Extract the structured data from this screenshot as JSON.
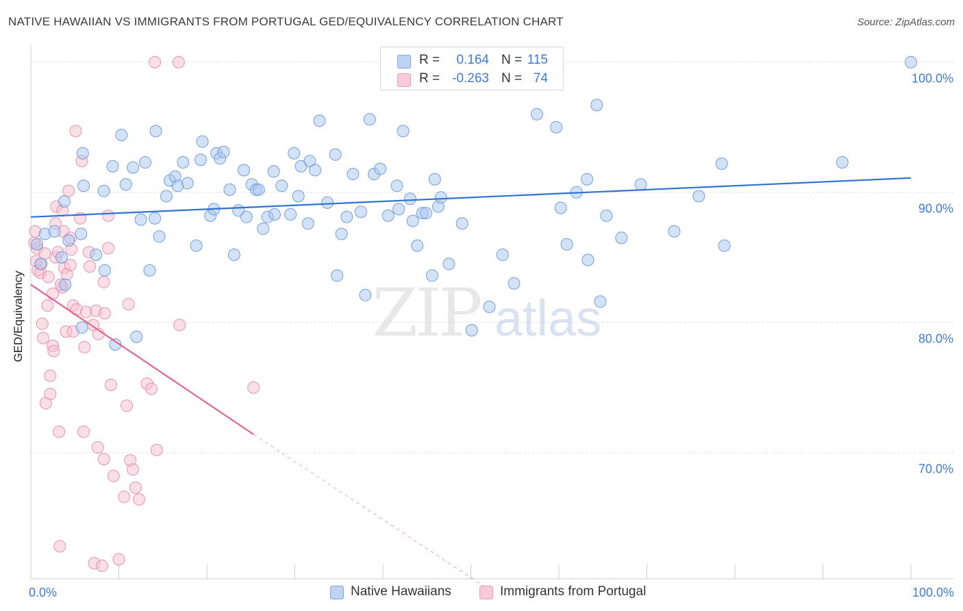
{
  "header": {
    "title": "NATIVE HAWAIIAN VS IMMIGRANTS FROM PORTUGAL GED/EQUIVALENCY CORRELATION CHART",
    "source": "Source: ZipAtlas.com"
  },
  "watermark": {
    "zip": "ZIP",
    "atlas": "atlas"
  },
  "legend": {
    "rows": [
      {
        "r_label": "R =",
        "r_value": "0.164",
        "n_label": "N =",
        "n_value": "115",
        "color": "#a9c6ef"
      },
      {
        "r_label": "R =",
        "r_value": "-0.263",
        "n_label": "N =",
        "n_value": "74",
        "color": "#f5b8cb"
      }
    ]
  },
  "bottom_legend": {
    "items": [
      {
        "label": "Native Hawaiians",
        "color": "#a9c6ef"
      },
      {
        "label": "Immigrants from Portugal",
        "color": "#f5b8cb"
      }
    ]
  },
  "colors": {
    "blue_fill": "#a9c6ef",
    "blue_stroke": "#6f9fdc",
    "blue_line": "#2f72d2",
    "pink_fill": "#f7bfd0",
    "pink_stroke": "#e793ae",
    "pink_line": "#e0668f",
    "axis_label": "#3d7bd9",
    "grid": "#dddddd"
  },
  "chart_data": {
    "type": "scatter",
    "title": "NATIVE HAWAIIAN VS IMMIGRANTS FROM PORTUGAL GED/EQUIVALENCY CORRELATION CHART",
    "ylabel": "GED/Equivalency",
    "xlabel": "",
    "xlim": [
      0,
      100
    ],
    "ylim": [
      60.3,
      101.3
    ],
    "y_ticks": [
      {
        "value": 70,
        "label": "70.0%"
      },
      {
        "value": 80,
        "label": "80.0%"
      },
      {
        "value": 90,
        "label": "90.0%"
      },
      {
        "value": 100,
        "label": "100.0%"
      }
    ],
    "x_tick_labels": [
      {
        "value": 0,
        "label": "0.0%"
      },
      {
        "value": 100,
        "label": "100.0%"
      }
    ],
    "grid": true,
    "series": [
      {
        "name": "Native Hawaiians",
        "r": 0.164,
        "n": 115,
        "trend": {
          "x0": 0,
          "y0": 88.1,
          "x1": 100,
          "y1": 91.1
        },
        "points": [
          [
            0.7,
            86
          ],
          [
            1.1,
            84.5
          ],
          [
            1.6,
            86.8
          ],
          [
            2.7,
            87
          ],
          [
            3.5,
            85
          ],
          [
            4.3,
            86.3
          ],
          [
            3.8,
            89.3
          ],
          [
            3.9,
            82.9
          ],
          [
            5.7,
            86.8
          ],
          [
            6,
            90.5
          ],
          [
            5.9,
            93
          ],
          [
            5.8,
            79.6
          ],
          [
            7.4,
            85.2
          ],
          [
            8.3,
            90.1
          ],
          [
            8.4,
            84
          ],
          [
            9.3,
            92
          ],
          [
            9.6,
            78.3
          ],
          [
            10.3,
            94.4
          ],
          [
            10.8,
            90.6
          ],
          [
            11.6,
            91.9
          ],
          [
            12,
            78.9
          ],
          [
            12.5,
            87.9
          ],
          [
            13,
            92.3
          ],
          [
            13.5,
            84
          ],
          [
            14.1,
            88
          ],
          [
            14.2,
            94.7
          ],
          [
            14.6,
            86.6
          ],
          [
            15.4,
            89.7
          ],
          [
            15.8,
            90.9
          ],
          [
            16.4,
            91.2
          ],
          [
            16.7,
            90.5
          ],
          [
            17.3,
            92.3
          ],
          [
            17.8,
            90.7
          ],
          [
            18.8,
            85.9
          ],
          [
            19.3,
            92.5
          ],
          [
            19.5,
            93.9
          ],
          [
            20.4,
            88.2
          ],
          [
            20.8,
            88.7
          ],
          [
            21.1,
            93
          ],
          [
            21.5,
            92.6
          ],
          [
            21.9,
            93.1
          ],
          [
            22.6,
            90.2
          ],
          [
            23.1,
            85.2
          ],
          [
            23.6,
            88.6
          ],
          [
            24.2,
            91.7
          ],
          [
            24.5,
            88.1
          ],
          [
            25.1,
            90.6
          ],
          [
            25.6,
            90.2
          ],
          [
            25.9,
            90.2
          ],
          [
            26.4,
            87.2
          ],
          [
            26.9,
            88.1
          ],
          [
            27.6,
            91.6
          ],
          [
            27.7,
            88.3
          ],
          [
            28.5,
            90.5
          ],
          [
            29.5,
            88.3
          ],
          [
            29.9,
            93
          ],
          [
            30.4,
            89.7
          ],
          [
            30.7,
            92
          ],
          [
            31.5,
            87.6
          ],
          [
            31.7,
            92.4
          ],
          [
            32.3,
            91.7
          ],
          [
            32.8,
            95.5
          ],
          [
            33.7,
            89.2
          ],
          [
            34.6,
            92.9
          ],
          [
            34.8,
            83.6
          ],
          [
            35.3,
            86.8
          ],
          [
            35.9,
            88.1
          ],
          [
            36.6,
            91.4
          ],
          [
            37.5,
            88.5
          ],
          [
            38,
            82.1
          ],
          [
            38.5,
            95.6
          ],
          [
            39,
            91.4
          ],
          [
            39.7,
            91.8
          ],
          [
            40.6,
            88.2
          ],
          [
            41.6,
            90.5
          ],
          [
            41.8,
            88.7
          ],
          [
            42.3,
            94.7
          ],
          [
            43.1,
            89.5
          ],
          [
            43.4,
            87.8
          ],
          [
            43.9,
            85.9
          ],
          [
            44.5,
            88.4
          ],
          [
            44.9,
            88.4
          ],
          [
            45.6,
            83.6
          ],
          [
            45.9,
            91
          ],
          [
            46.3,
            88.9
          ],
          [
            46.6,
            89.6
          ],
          [
            47.5,
            84.5
          ],
          [
            49,
            87.6
          ],
          [
            50.1,
            79.4
          ],
          [
            52.1,
            81.2
          ],
          [
            53.6,
            85.2
          ],
          [
            54.9,
            83
          ],
          [
            57.5,
            96
          ],
          [
            59.3,
            100
          ],
          [
            59.7,
            95
          ],
          [
            60.2,
            88.8
          ],
          [
            60.9,
            86
          ],
          [
            62,
            90
          ],
          [
            63.2,
            91
          ],
          [
            63.3,
            84.8
          ],
          [
            64.3,
            96.7
          ],
          [
            64.7,
            81.6
          ],
          [
            65.4,
            88.2
          ],
          [
            67.1,
            86.5
          ],
          [
            69.3,
            90.6
          ],
          [
            73.1,
            87
          ],
          [
            75.9,
            89.7
          ],
          [
            78.8,
            85.9
          ],
          [
            78.5,
            92.2
          ],
          [
            92.2,
            92.3
          ],
          [
            100,
            100
          ]
        ]
      },
      {
        "name": "Immigrants from Portugal",
        "r": -0.263,
        "n": 74,
        "trend": {
          "x0": 0,
          "y0": 82.9,
          "x1": 25.3,
          "y1": 71.4,
          "dash_x1": 52,
          "dash_y1": 59.5
        },
        "points": [
          [
            0.5,
            87
          ],
          [
            0.6,
            84.7
          ],
          [
            0.7,
            85.7
          ],
          [
            0.8,
            84
          ],
          [
            1.1,
            83.8
          ],
          [
            1.2,
            84.5
          ],
          [
            1.3,
            79.9
          ],
          [
            1.4,
            78.8
          ],
          [
            1.6,
            85.3
          ],
          [
            1.7,
            73.8
          ],
          [
            1.9,
            81.3
          ],
          [
            2,
            83.5
          ],
          [
            2.2,
            75.9
          ],
          [
            2.2,
            74.5
          ],
          [
            2.5,
            78.2
          ],
          [
            2.5,
            82.2
          ],
          [
            2.6,
            77.8
          ],
          [
            2.8,
            85
          ],
          [
            2.8,
            87.6
          ],
          [
            2.9,
            88.9
          ],
          [
            3.1,
            85.4
          ],
          [
            3.2,
            71.6
          ],
          [
            3.3,
            62.8
          ],
          [
            3.6,
            88.6
          ],
          [
            3.6,
            82.7
          ],
          [
            3.7,
            87
          ],
          [
            3.8,
            84.2
          ],
          [
            4,
            79.3
          ],
          [
            4.1,
            83.7
          ],
          [
            4.3,
            90.1
          ],
          [
            4.5,
            86.5
          ],
          [
            4.5,
            84.4
          ],
          [
            4.6,
            85.6
          ],
          [
            4.8,
            79.3
          ],
          [
            4.8,
            81.3
          ],
          [
            5.1,
            94.7
          ],
          [
            5.2,
            81
          ],
          [
            5.6,
            88
          ],
          [
            5.8,
            92.4
          ],
          [
            6,
            71.6
          ],
          [
            6.1,
            78.1
          ],
          [
            6.3,
            80.8
          ],
          [
            6.6,
            85.4
          ],
          [
            6.7,
            84.3
          ],
          [
            7.2,
            61.5
          ],
          [
            7.4,
            80.9
          ],
          [
            7.6,
            70.4
          ],
          [
            7.7,
            79.1
          ],
          [
            8.1,
            61.3
          ],
          [
            8.3,
            69.5
          ],
          [
            8.3,
            83.1
          ],
          [
            8.4,
            80.7
          ],
          [
            8.8,
            88.2
          ],
          [
            8.8,
            85.7
          ],
          [
            9.1,
            75.2
          ],
          [
            9.4,
            68.2
          ],
          [
            10,
            61.8
          ],
          [
            10.6,
            66.6
          ],
          [
            10.9,
            73.6
          ],
          [
            11.1,
            81.4
          ],
          [
            11.3,
            69.4
          ],
          [
            11.6,
            68.7
          ],
          [
            11.9,
            67.3
          ],
          [
            12.3,
            66.4
          ],
          [
            13.2,
            75.3
          ],
          [
            13.7,
            74.9
          ],
          [
            14.3,
            70.2
          ],
          [
            14.1,
            100
          ],
          [
            16.8,
            100
          ],
          [
            16.9,
            79.8
          ],
          [
            25.3,
            75
          ],
          [
            0.4,
            86.1
          ],
          [
            3.4,
            82.9
          ],
          [
            7.1,
            79.8
          ]
        ]
      }
    ]
  }
}
